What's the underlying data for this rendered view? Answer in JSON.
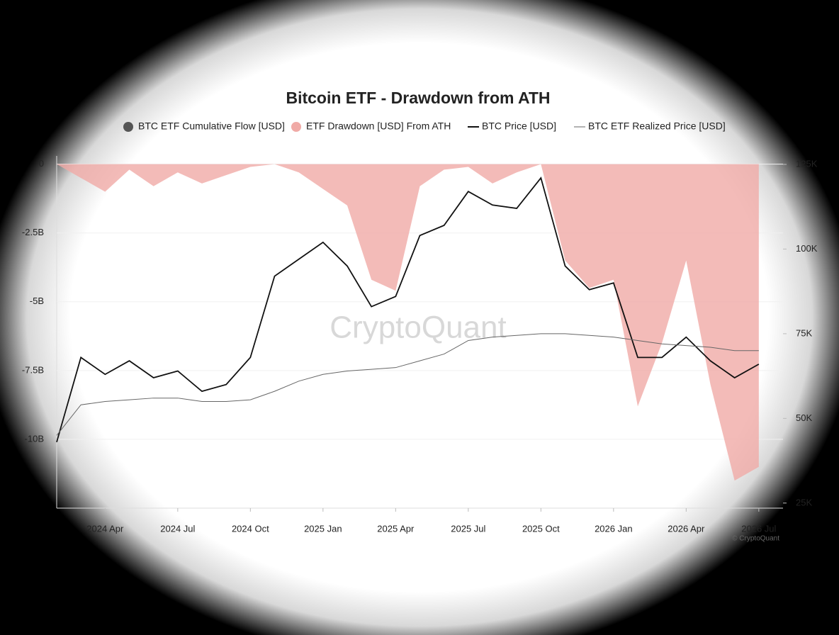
{
  "chart_data": {
    "type": "line",
    "title": "Bitcoin ETF - Drawdown from ATH",
    "x": [
      "2024-02",
      "2024-03",
      "2024-04",
      "2024-05",
      "2024-06",
      "2024-07",
      "2024-08",
      "2024-09",
      "2024-10",
      "2024-11",
      "2024-12",
      "2025-01",
      "2025-02",
      "2025-03",
      "2025-04",
      "2025-05",
      "2025-06",
      "2025-07",
      "2025-08",
      "2025-09",
      "2025-10",
      "2025-11",
      "2025-12",
      "2026-01",
      "2026-02",
      "2026-03",
      "2026-04",
      "2026-05",
      "2026-06",
      "2026-07"
    ],
    "xlim": [
      "2024-02",
      "2026-08"
    ],
    "xticks": [
      {
        "value": "2024-04",
        "label": "2024 Apr"
      },
      {
        "value": "2024-07",
        "label": "2024 Jul"
      },
      {
        "value": "2024-10",
        "label": "2024 Oct"
      },
      {
        "value": "2025-01",
        "label": "2025 Jan"
      },
      {
        "value": "2025-04",
        "label": "2025 Apr"
      },
      {
        "value": "2025-07",
        "label": "2025 Jul"
      },
      {
        "value": "2025-10",
        "label": "2025 Oct"
      },
      {
        "value": "2026-01",
        "label": "2026 Jan"
      },
      {
        "value": "2026-04",
        "label": "2026 Apr"
      },
      {
        "value": "2026-07",
        "label": "2026 Jul"
      }
    ],
    "ylim": [
      -12.5,
      0.3
    ],
    "yticks": [
      0,
      {
        "value": -2.5,
        "label": "-2.5B"
      },
      {
        "value": -5,
        "label": "-5B"
      },
      {
        "value": -7.5,
        "label": "-7.5B"
      },
      {
        "value": -10,
        "label": "-10B"
      }
    ],
    "y2lim": [
      23500,
      127500
    ],
    "y2ticks": [
      {
        "value": 25000,
        "label": "25K"
      },
      {
        "value": 50000,
        "label": "50K"
      },
      {
        "value": 75000,
        "label": "75K"
      },
      {
        "value": 100000,
        "label": "100K"
      },
      {
        "value": 125000,
        "label": "125K"
      }
    ],
    "series": [
      {
        "name": "BTC ETF Cumulative Flow [USD]",
        "color": "#555555",
        "type": "dot"
      },
      {
        "name": "ETF Drawdown [USD] From ATH",
        "color": "#f0aaa6",
        "type": "area",
        "values": [
          0,
          -0.5,
          -1.0,
          -0.2,
          -0.8,
          -0.3,
          -0.7,
          -0.4,
          -0.1,
          0,
          -0.3,
          -0.9,
          -1.5,
          -4.2,
          -4.6,
          -0.8,
          -0.2,
          -0.1,
          -0.7,
          -0.3,
          0,
          -3.5,
          -4.5,
          -4.2,
          -8.8,
          -6.5,
          -3.5,
          -8.0,
          -11.5,
          -11.0
        ]
      },
      {
        "name": "BTC Price [USD]",
        "color": "#111111",
        "type": "line",
        "axis": "y2",
        "values": [
          43000,
          68000,
          63000,
          67000,
          62000,
          64000,
          58000,
          60000,
          68000,
          92000,
          97000,
          102000,
          95000,
          83000,
          86000,
          104000,
          107000,
          117000,
          113000,
          112000,
          121000,
          95000,
          88000,
          90000,
          68000,
          68000,
          74000,
          67000,
          62000,
          66000
        ]
      },
      {
        "name": "BTC ETF Realized Price [USD]",
        "color": "#666666",
        "type": "thin",
        "axis": "y2",
        "values": [
          45000,
          54000,
          55000,
          55500,
          56000,
          56000,
          55000,
          55000,
          55500,
          58000,
          61000,
          63000,
          64000,
          64500,
          65000,
          67000,
          69000,
          73000,
          74000,
          74500,
          75000,
          75000,
          74500,
          74000,
          73000,
          72000,
          71500,
          71000,
          70000,
          70000
        ]
      }
    ],
    "watermark": "CryptoQuant",
    "source": "© CryptoQuant"
  }
}
